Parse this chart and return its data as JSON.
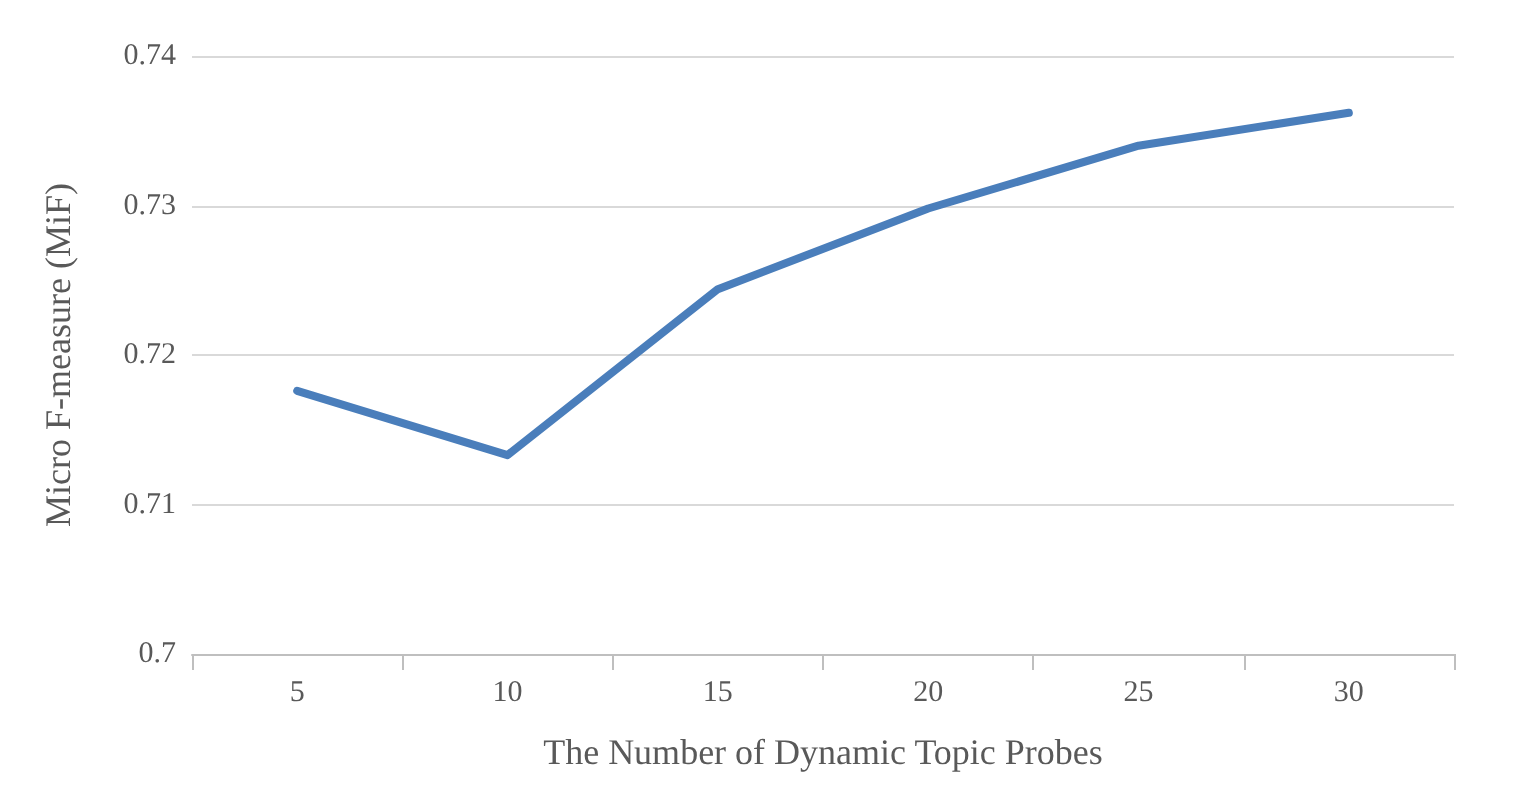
{
  "chart_data": {
    "type": "line",
    "xlabel": "The Number of Dynamic Topic Probes",
    "ylabel": "Micro F-measure (MiF)",
    "categories": [
      "5",
      "10",
      "15",
      "20",
      "25",
      "30"
    ],
    "series": [
      {
        "color": "#4a7ebb",
        "values": [
          0.7176,
          0.7133,
          0.7244,
          0.7298,
          0.734,
          0.7362
        ]
      }
    ],
    "ylim": [
      0.7,
      0.74
    ],
    "yticks": [
      0.7,
      0.71,
      0.72,
      0.73,
      0.74
    ],
    "grid": "y",
    "marker": "none",
    "line_style": "solid"
  }
}
